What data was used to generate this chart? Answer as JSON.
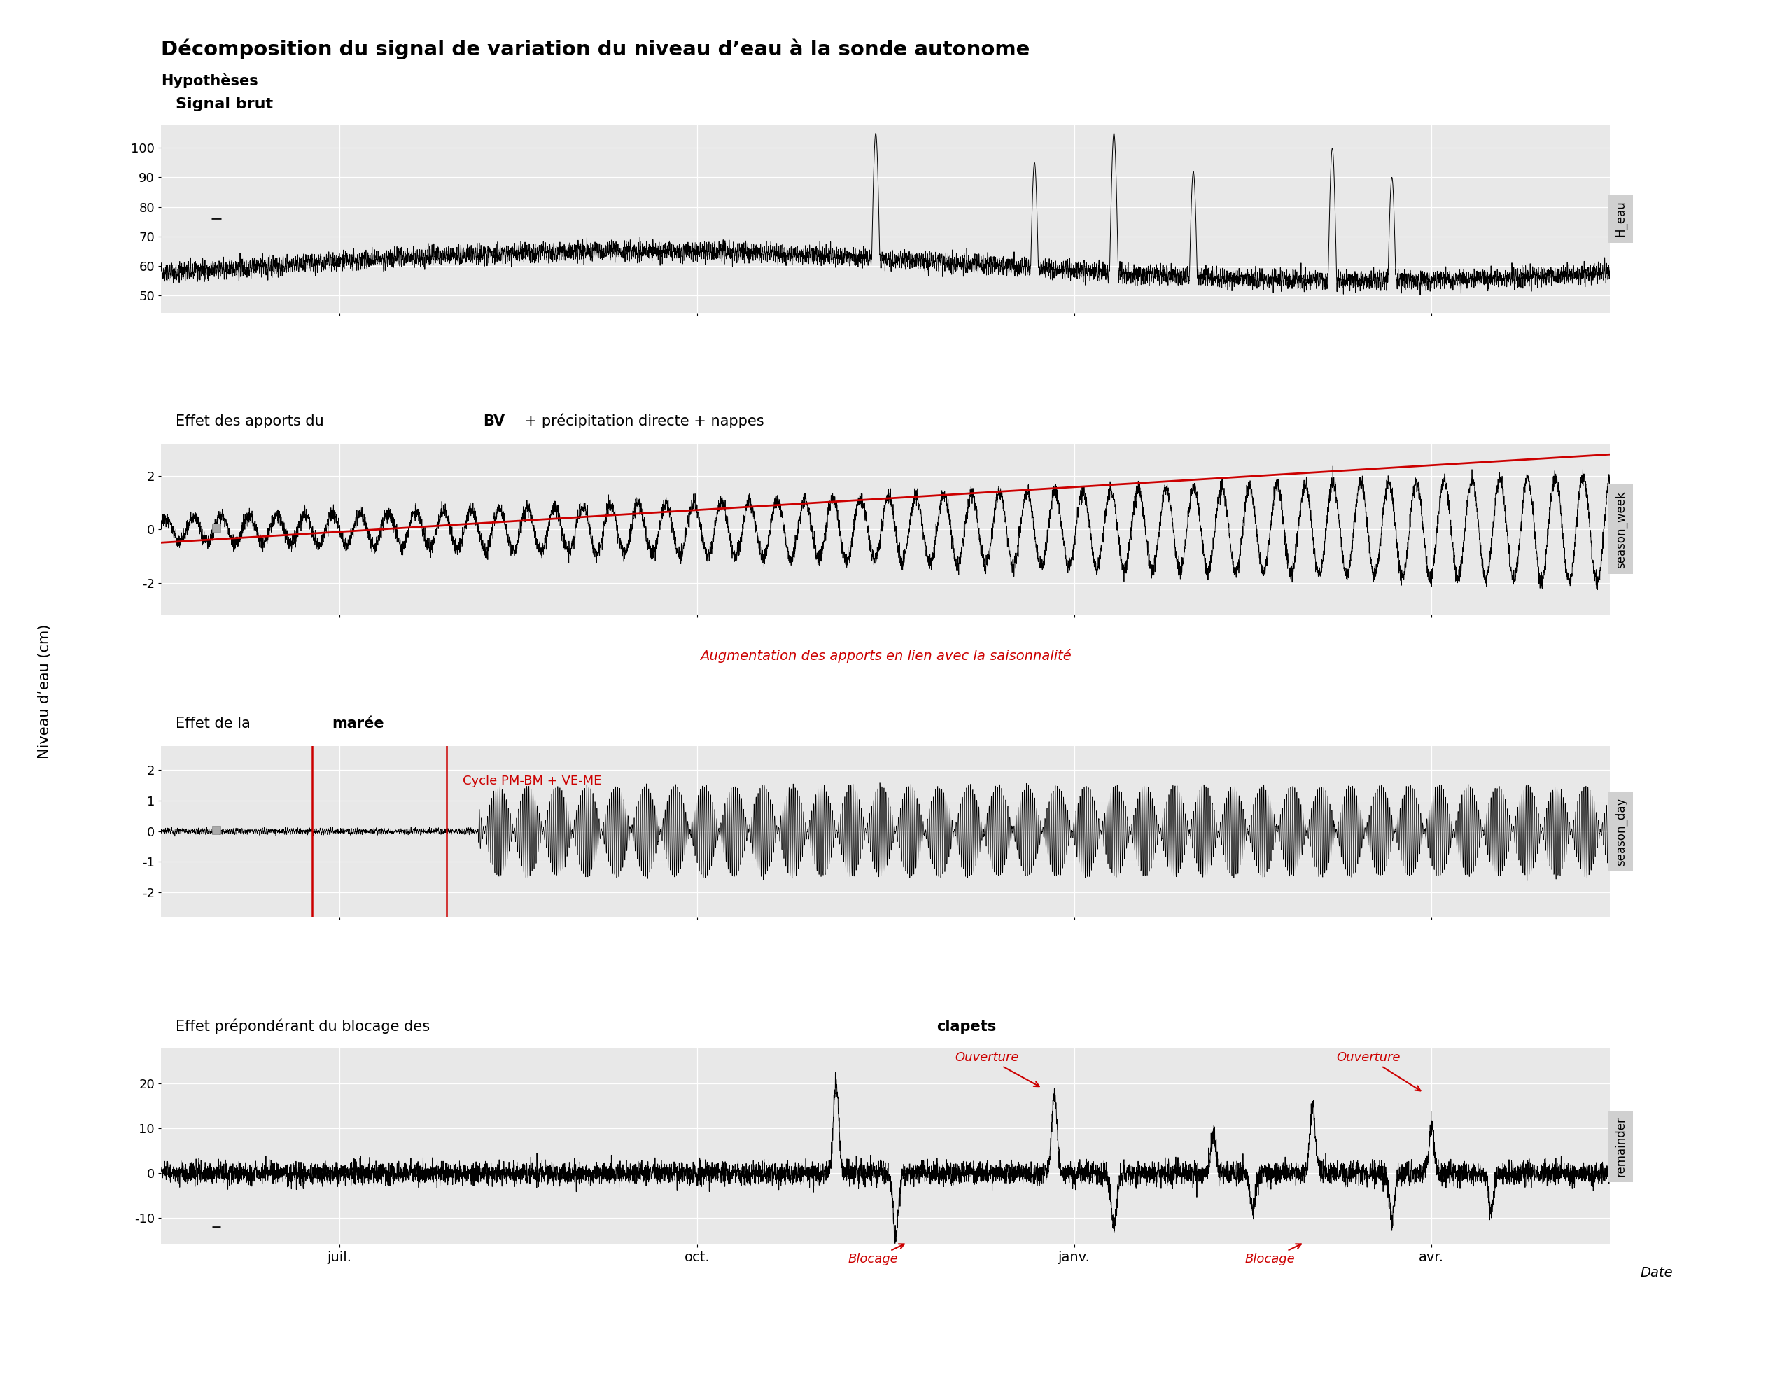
{
  "title": "Décomposition du signal de variation du niveau d’eau à la sonde autonome",
  "subtitle": "Hypothèses",
  "right_labels": [
    "H_eau",
    "season_week",
    "season_day",
    "remainder"
  ],
  "ylabel": "Niveau d’eau (cm)",
  "xlabel": "Date",
  "panel1_ylim": [
    44,
    108
  ],
  "panel1_yticks": [
    50,
    60,
    70,
    80,
    90,
    100
  ],
  "panel2_ylim": [
    -3.2,
    3.2
  ],
  "panel2_yticks": [
    -2,
    0,
    2
  ],
  "panel3_ylim": [
    -2.8,
    2.8
  ],
  "panel3_yticks": [
    -2,
    -1,
    0,
    1,
    2
  ],
  "panel4_ylim": [
    -16,
    28
  ],
  "panel4_yticks": [
    -10,
    0,
    10,
    20
  ],
  "xticklabels": [
    "juil.",
    "oct.",
    "janv.",
    "avr."
  ],
  "annotation_p2": "Augmentation des apports en lien avec la saisonnalité",
  "annotation_p3": "Cycle PM-BM + VE-ME",
  "annotation_p4_ouv1": "Ouverture",
  "annotation_p4_ouv2": "Ouverture",
  "annotation_p4_bloc1": "Blocage",
  "annotation_p4_bloc2": "Blocage",
  "background_color": "#e8e8e8",
  "right_label_bg": "#d0d0d0",
  "line_color": "#000000",
  "trend_color": "#cc0000",
  "annotation_color": "#cc0000"
}
